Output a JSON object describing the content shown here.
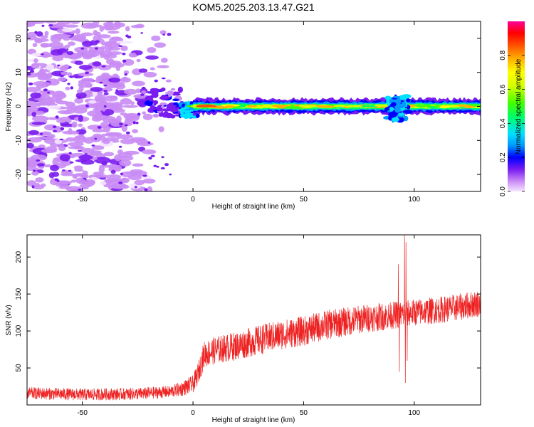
{
  "chart_data": [
    {
      "type": "heatmap",
      "title": "KOM5.2025.203.13.47.G21",
      "xlabel": "Height of straight line (km)",
      "ylabel": "Frequency (Hz)",
      "xlim": [
        -75,
        130
      ],
      "ylim": [
        -25,
        25
      ],
      "xticks": [
        -50,
        0,
        50,
        100
      ],
      "yticks": [
        -20,
        -10,
        0,
        10,
        20
      ],
      "colorbar": {
        "label": "Normalized spectral amplitude",
        "range": [
          0,
          1
        ],
        "ticks": [
          "0.0",
          "0.2",
          "0.4",
          "0.6",
          "0.8"
        ],
        "colors": [
          "#f5e6ff",
          "#c98cf5",
          "#7a1cf0",
          "#0000ff",
          "#0099ff",
          "#00e0ff",
          "#00ff66",
          "#44ff00",
          "#d4ff00",
          "#ffff00",
          "#ffb000",
          "#ff5000",
          "#ff0000",
          "#ff0099"
        ]
      },
      "noise_region": {
        "x_range": [
          -75,
          -10
        ],
        "y_range": [
          -25,
          25
        ],
        "level": "low"
      },
      "features": [
        {
          "x_range": [
            -20,
            -5
          ],
          "freq_range": [
            -3,
            5
          ],
          "level": "low-mid"
        },
        {
          "x_range": [
            -5,
            2
          ],
          "freq_range": [
            -3,
            1
          ],
          "level": "mid"
        },
        {
          "x_range": [
            0,
            130
          ],
          "freq_center": 0,
          "freq_halfwidth": 1,
          "level": "high"
        },
        {
          "x_range": [
            88,
            98
          ],
          "freq_range": [
            -4,
            3
          ],
          "level": "mid"
        }
      ],
      "grid": false,
      "legend": "none"
    },
    {
      "type": "line",
      "title": "",
      "xlabel": "Height of straight line (km)",
      "ylabel": "SNR (v/v)",
      "xlim": [
        -75,
        130
      ],
      "ylim": [
        0,
        230
      ],
      "xticks": [
        -50,
        0,
        50,
        100
      ],
      "yticks": [
        50,
        100,
        150,
        200
      ],
      "line_color": "#ee2222",
      "trend": {
        "x": [
          -75,
          -50,
          -25,
          -10,
          -5,
          0,
          2,
          5,
          10,
          20,
          30,
          40,
          50,
          60,
          70,
          80,
          88,
          100,
          110,
          120,
          130
        ],
        "y": [
          16,
          14,
          15,
          18,
          22,
          28,
          40,
          68,
          74,
          80,
          88,
          95,
          100,
          108,
          113,
          118,
          120,
          125,
          128,
          132,
          138
        ]
      },
      "noise_amplitude": {
        "x": [
          -75,
          -10,
          0,
          5,
          30,
          60,
          100,
          130
        ],
        "y": [
          8,
          8,
          12,
          18,
          20,
          20,
          18,
          18
        ]
      },
      "spikes": [
        {
          "x": 92.8,
          "y": 190
        },
        {
          "x": 93.3,
          "y": 45
        },
        {
          "x": 95.6,
          "y": 232
        },
        {
          "x": 96.0,
          "y": 30
        },
        {
          "x": 96.3,
          "y": 220
        },
        {
          "x": 96.8,
          "y": 60
        }
      ],
      "grid": false,
      "legend": "none"
    }
  ]
}
